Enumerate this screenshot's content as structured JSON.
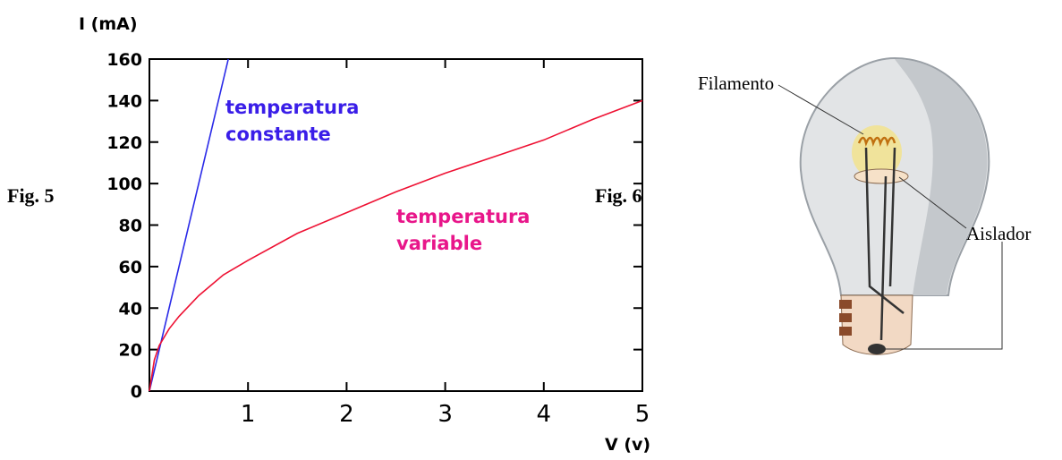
{
  "chart_data": {
    "type": "line",
    "ylabel": "I (mA)",
    "xlabel": "V (v)",
    "xlim": [
      0,
      5
    ],
    "xticks": [
      1,
      2,
      3,
      4,
      5
    ],
    "ylim": [
      0,
      160
    ],
    "yticks": [
      0,
      20,
      40,
      60,
      80,
      100,
      120,
      140,
      160
    ],
    "series": [
      {
        "name": "temperatura constante",
        "color": "#2a2ae8",
        "x": [
          0,
          0.8
        ],
        "values": [
          0,
          160
        ]
      },
      {
        "name": "temperatura variable",
        "color": "#ee1133",
        "x": [
          0,
          0.05,
          0.1,
          0.2,
          0.3,
          0.5,
          0.75,
          1,
          1.5,
          2,
          2.5,
          3,
          3.5,
          4,
          4.5,
          5
        ],
        "values": [
          0,
          15,
          22,
          30,
          36,
          46,
          56,
          63,
          76,
          86,
          96,
          105,
          113,
          121,
          131,
          140
        ]
      }
    ]
  },
  "figures": {
    "left": "Fig. 5",
    "right": "Fig. 6"
  },
  "bulb": {
    "filament": "Filamento",
    "insulator": "Aislador"
  }
}
